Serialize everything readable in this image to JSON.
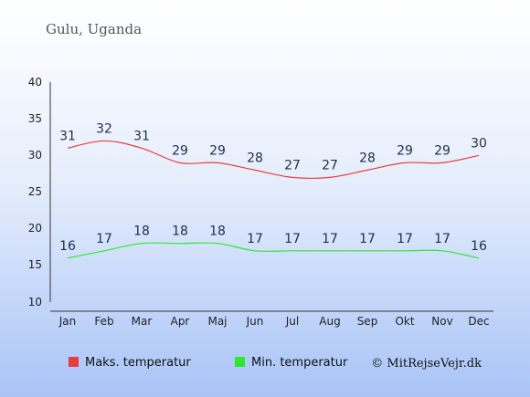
{
  "chart_data": {
    "type": "line",
    "title": "Gulu, Uganda",
    "categories": [
      "Jan",
      "Feb",
      "Mar",
      "Apr",
      "Maj",
      "Jun",
      "Jul",
      "Aug",
      "Sep",
      "Okt",
      "Nov",
      "Dec"
    ],
    "yticks": [
      "40",
      "35",
      "30",
      "25",
      "20",
      "15",
      "10"
    ],
    "ylim": [
      10,
      40
    ],
    "grid": false,
    "legend_position": "bottom",
    "series": [
      {
        "name": "Maks. temperatur",
        "color": "#e63e3e",
        "values": [
          31,
          32,
          31,
          29,
          29,
          28,
          27,
          27,
          28,
          29,
          29,
          30
        ],
        "labels": [
          "31",
          "32",
          "31",
          "29",
          "29",
          "28",
          "27",
          "27",
          "28",
          "29",
          "29",
          "30"
        ]
      },
      {
        "name": "Min. temperatur",
        "color": "#2ee82e",
        "values": [
          16,
          17,
          18,
          18,
          18,
          17,
          17,
          17,
          17,
          17,
          17,
          16
        ],
        "labels": [
          "16",
          "17",
          "18",
          "18",
          "18",
          "17",
          "17",
          "17",
          "17",
          "17",
          "17",
          "16"
        ]
      }
    ],
    "credit": "© MitRejseVejr.dk"
  }
}
